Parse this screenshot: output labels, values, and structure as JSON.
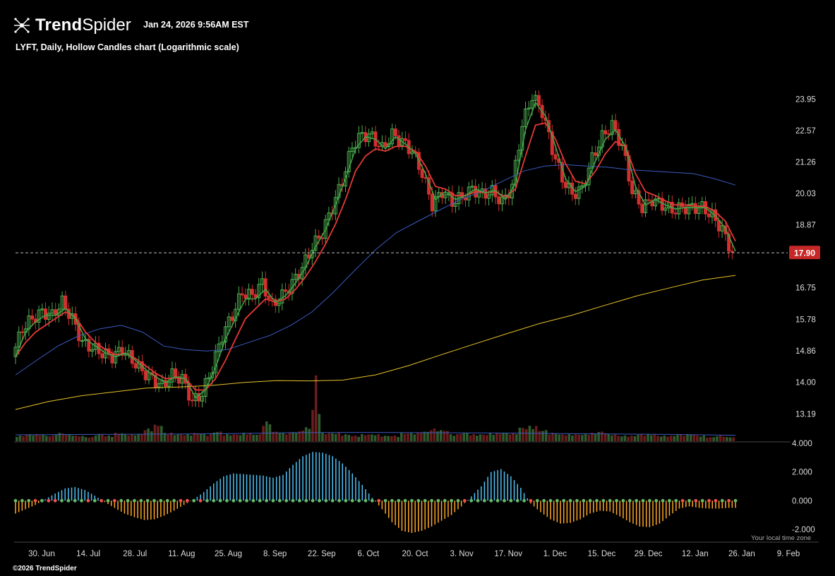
{
  "header": {
    "brand_bold": "Trend",
    "brand_light": "Spider",
    "timestamp": "Jan 24, 2026 9:56AM EST",
    "subtitle": "LYFT, Daily, Hollow Candles chart (Logarithmic scale)"
  },
  "footer": {
    "copyright": "©2026 TrendSpider",
    "tz_note": "Your local time zone"
  },
  "colors": {
    "background": "#000000",
    "up": "#4caf50",
    "down": "#d32f2f",
    "ema_fast": "#43a047",
    "ema_slow": "#e53935",
    "sma_mid": "#3b5bbf",
    "sma_long": "#e6c229",
    "macd_pos": "#4fc3f7",
    "macd_neg": "#ffa726",
    "last_price_bg": "#c62828"
  },
  "chart_data": {
    "type": "candlestick",
    "symbol": "LYFT",
    "interval": "Daily",
    "style": "Hollow Candles",
    "y_scale": "log",
    "price_ticks": [
      "23.95",
      "22.57",
      "21.26",
      "20.03",
      "18.87",
      "16.75",
      "15.78",
      "14.86",
      "14.00",
      "13.19"
    ],
    "ylim": [
      12.95,
      25.9
    ],
    "last_price": "17.90",
    "x_ticks": [
      "30. Jun",
      "14. Jul",
      "28. Jul",
      "11. Aug",
      "25. Aug",
      "8. Sep",
      "22. Sep",
      "6. Oct",
      "20. Oct",
      "3. Nov",
      "17. Nov",
      "1. Dec",
      "15. Dec",
      "29. Dec",
      "12. Jan",
      "26. Jan",
      "9. Feb"
    ],
    "close_path": [
      14.7,
      15.5,
      15.8,
      16.0,
      15.9,
      16.3,
      15.8,
      15.1,
      14.95,
      14.8,
      14.7,
      14.9,
      14.6,
      14.3,
      14.1,
      13.9,
      14.2,
      14.1,
      13.5,
      13.7,
      14.4,
      15.3,
      15.9,
      16.6,
      16.5,
      16.9,
      16.2,
      16.5,
      16.9,
      17.4,
      18.1,
      18.6,
      19.5,
      20.5,
      21.9,
      22.4,
      22.3,
      21.8,
      22.4,
      22.1,
      21.7,
      20.8,
      19.6,
      20.1,
      19.7,
      19.9,
      20.2,
      20.0,
      20.1,
      19.7,
      20.3,
      22.8,
      24.1,
      23.4,
      21.8,
      20.6,
      20.0,
      20.2,
      21.4,
      22.3,
      22.8,
      21.9,
      20.1,
      19.5,
      19.8,
      19.6,
      19.4,
      19.5,
      19.5,
      19.5,
      19.2,
      18.7,
      17.9
    ],
    "ema_fast": [
      14.7,
      15.4,
      15.7,
      15.9,
      15.9,
      16.1,
      15.8,
      15.2,
      15.0,
      14.8,
      14.7,
      14.8,
      14.6,
      14.35,
      14.15,
      14.0,
      14.15,
      14.1,
      13.6,
      13.8,
      14.4,
      15.2,
      15.8,
      16.4,
      16.4,
      16.7,
      16.3,
      16.5,
      16.9,
      17.4,
      18.1,
      18.7,
      19.6,
      20.6,
      21.8,
      22.3,
      22.2,
      21.8,
      22.3,
      22.0,
      21.6,
      20.8,
      19.8,
      20.1,
      19.8,
      19.95,
      20.2,
      20.05,
      20.15,
      19.8,
      20.4,
      22.6,
      23.8,
      23.2,
      21.9,
      20.6,
      20.1,
      20.3,
      21.3,
      22.2,
      22.6,
      21.9,
      20.3,
      19.6,
      19.8,
      19.6,
      19.45,
      19.5,
      19.5,
      19.5,
      19.2,
      18.75,
      17.95
    ],
    "ema_slow": [
      14.7,
      15.1,
      15.4,
      15.6,
      15.8,
      16.0,
      15.85,
      15.4,
      15.1,
      14.9,
      14.75,
      14.8,
      14.65,
      14.45,
      14.25,
      14.1,
      14.12,
      14.1,
      13.8,
      13.8,
      14.1,
      14.6,
      15.2,
      15.8,
      16.1,
      16.4,
      16.3,
      16.4,
      16.7,
      17.1,
      17.6,
      18.2,
      18.9,
      19.8,
      20.9,
      21.5,
      21.8,
      21.7,
      21.9,
      21.9,
      21.7,
      21.1,
      20.3,
      20.2,
      19.95,
      19.95,
      20.1,
      20.05,
      20.1,
      19.9,
      20.2,
      21.5,
      22.8,
      22.9,
      22.2,
      21.2,
      20.5,
      20.4,
      20.9,
      21.6,
      22.1,
      21.9,
      20.8,
      20.1,
      19.95,
      19.75,
      19.6,
      19.6,
      19.55,
      19.55,
      19.35,
      19.0,
      18.3
    ],
    "sma_mid": [
      14.2,
      14.6,
      15.0,
      15.3,
      15.5,
      15.6,
      15.4,
      15.0,
      14.9,
      14.86,
      14.9,
      15.1,
      15.3,
      15.6,
      16.0,
      16.6,
      17.3,
      18.0,
      18.6,
      19.0,
      19.4,
      19.8,
      20.1,
      20.5,
      20.9,
      21.1,
      21.15,
      21.1,
      21.05,
      20.95,
      20.9,
      20.85,
      20.8,
      20.6,
      20.35
    ],
    "sma_long": [
      13.3,
      13.5,
      13.65,
      13.75,
      13.85,
      13.88,
      13.92,
      14.0,
      14.05,
      14.04,
      14.06,
      14.2,
      14.45,
      14.75,
      15.05,
      15.35,
      15.65,
      15.9,
      16.2,
      16.5,
      16.75,
      17.0,
      17.15
    ],
    "volume": [
      4,
      5,
      5,
      4,
      6,
      5,
      4,
      3,
      5,
      4,
      6,
      5,
      5,
      9,
      12,
      6,
      5,
      5,
      6,
      5,
      7,
      5,
      5,
      6,
      5,
      14,
      7,
      6,
      7,
      10,
      24,
      6,
      6,
      5,
      4,
      5,
      5,
      4,
      4,
      6,
      6,
      7,
      9,
      8,
      5,
      6,
      5,
      5,
      6,
      6,
      6,
      10,
      11,
      8,
      6,
      5,
      5,
      5,
      6,
      7,
      5,
      4,
      4,
      5,
      5,
      4,
      4,
      5,
      5,
      4,
      3,
      4,
      3
    ],
    "volume_avg": [
      4.5,
      4.6,
      4.8,
      4.9,
      5.0,
      5.1,
      5.3,
      5.6,
      6.0,
      6.1,
      6.2,
      6.1,
      6.0,
      5.9,
      5.8,
      5.6,
      5.4,
      5.2,
      5.0,
      4.8,
      4.5,
      4.2
    ],
    "osc_ticks": [
      "4.000",
      "2.000",
      "0.000",
      "-2.000"
    ],
    "osc_range": [
      -2.2,
      4.0
    ],
    "oscillator": [
      -0.9,
      -0.6,
      -0.3,
      0.1,
      0.5,
      0.85,
      0.95,
      0.75,
      0.35,
      -0.1,
      -0.5,
      -0.9,
      -1.15,
      -1.35,
      -1.3,
      -1.05,
      -0.7,
      -0.3,
      0.1,
      0.6,
      1.2,
      1.7,
      1.9,
      1.85,
      1.8,
      1.75,
      1.6,
      1.8,
      2.5,
      3.1,
      3.4,
      3.35,
      3.1,
      2.6,
      1.9,
      1.1,
      0.2,
      -0.6,
      -1.5,
      -2.1,
      -2.25,
      -2.1,
      -1.8,
      -1.4,
      -1.0,
      -0.4,
      0.3,
      1.0,
      2.0,
      2.2,
      1.7,
      0.9,
      -0.2,
      -0.8,
      -1.3,
      -1.6,
      -1.55,
      -1.3,
      -0.9,
      -0.7,
      -0.75,
      -1.1,
      -1.5,
      -1.8,
      -1.85,
      -1.6,
      -1.05,
      -0.55,
      -0.4,
      -0.5,
      -0.55,
      -0.55,
      -0.5
    ]
  }
}
